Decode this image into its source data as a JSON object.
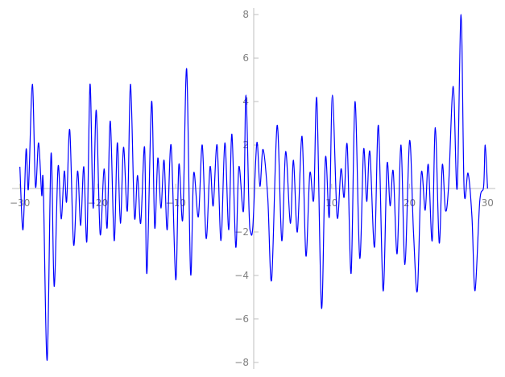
{
  "chart_data": {
    "type": "line",
    "xlim": [
      -31,
      31
    ],
    "ylim": [
      -8.3,
      8.3
    ],
    "xticks": [
      {
        "value": -30,
        "label": "−30"
      },
      {
        "value": -20,
        "label": "−20"
      },
      {
        "value": -10,
        "label": "−10"
      },
      10,
      20,
      30
    ],
    "yticks": [
      {
        "value": -8,
        "label": "−8"
      },
      {
        "value": -6,
        "label": "−6"
      },
      {
        "value": -4,
        "label": "−4"
      },
      {
        "value": -2,
        "label": "−2"
      },
      2,
      4,
      6,
      8
    ],
    "grid": false,
    "series": [
      {
        "color": "#0000ff",
        "x": [
          -30,
          -29.6,
          -29.2,
          -28.9,
          -28.4,
          -28.0,
          -27.6,
          -27.2,
          -27.0,
          -26.5,
          -26.0,
          -25.6,
          -25.1,
          -24.7,
          -24.3,
          -24.0,
          -23.6,
          -23.1,
          -22.6,
          -22.2,
          -21.8,
          -21.4,
          -21.0,
          -20.6,
          -20.2,
          -19.7,
          -19.2,
          -18.8,
          -18.4,
          -17.9,
          -17.5,
          -17.1,
          -16.7,
          -16.2,
          -15.8,
          -15.3,
          -14.9,
          -14.5,
          -14.0,
          -13.7,
          -13.1,
          -12.7,
          -12.3,
          -11.9,
          -11.5,
          -11.1,
          -10.6,
          -10.0,
          -9.6,
          -9.1,
          -8.6,
          -8.1,
          -7.7,
          -7.1,
          -6.6,
          -6.1,
          -5.6,
          -5.2,
          -4.7,
          -4.2,
          -3.7,
          -3.2,
          -2.8,
          -2.3,
          -1.9,
          -1.3,
          -1.0,
          -0.6,
          -0.4,
          -0.1,
          0.4,
          0.8,
          1.2,
          1.8,
          2.3,
          3.0,
          3.6,
          4.1,
          4.7,
          5.1,
          5.6,
          6.2,
          6.7,
          7.2,
          7.7,
          8.1,
          8.7,
          9.2,
          9.7,
          10.1,
          10.7,
          11.2,
          11.6,
          12.0,
          12.5,
          13.0,
          13.6,
          14.1,
          14.5,
          14.9,
          15.5,
          16.0,
          16.6,
          17.1,
          17.5,
          17.9,
          18.4,
          18.9,
          19.4,
          20.0,
          20.5,
          21.0,
          21.5,
          22.0,
          22.4,
          22.9,
          23.3,
          23.8,
          24.2,
          24.6,
          25.0,
          25.6,
          26.1,
          26.6,
          27.0,
          27.5,
          28.0,
          28.4,
          29.0,
          29.5,
          29.7,
          30
        ],
        "values": [
          1.0,
          -1.9,
          1.8,
          0,
          4.8,
          0.1,
          2.1,
          -0.3,
          0.2,
          -7.9,
          1.6,
          -4.5,
          1.0,
          -1.4,
          0.8,
          -0.6,
          2.7,
          -2.6,
          0.8,
          -1.7,
          1.0,
          -2.4,
          4.8,
          -0.9,
          3.6,
          -2.1,
          0.9,
          -1.8,
          3.1,
          -2.4,
          2.1,
          -1.6,
          1.9,
          -1.0,
          4.8,
          -1.3,
          0.6,
          -1.6,
          1.9,
          -3.9,
          4.0,
          -1.8,
          1.4,
          -0.9,
          1.3,
          -1.9,
          2.0,
          -4.2,
          1.1,
          -1.4,
          5.5,
          -3.9,
          0.7,
          -1.3,
          2.0,
          -2.3,
          1.0,
          -0.8,
          2.0,
          -2.4,
          2.1,
          -1.9,
          2.5,
          -2.7,
          1.0,
          -1.0,
          4.3,
          -1.0,
          -2.0,
          -1.7,
          2.1,
          0.1,
          1.8,
          -0.4,
          -4.2,
          2.9,
          -2.4,
          1.7,
          -1.6,
          1.3,
          -2.0,
          2.4,
          -3.1,
          0.7,
          -0.5,
          4.1,
          -5.5,
          1.4,
          -1.3,
          4.3,
          -1.3,
          0.9,
          -0.4,
          2.0,
          -3.9,
          4.0,
          -3.2,
          1.8,
          -0.6,
          1.7,
          -2.7,
          2.9,
          -4.7,
          1.1,
          -0.8,
          0.8,
          -3.0,
          2.0,
          -3.5,
          2.2,
          -2.0,
          -4.7,
          0.7,
          -1.0,
          1.1,
          -2.4,
          2.8,
          -2.5,
          1.1,
          -1.0,
          0.1,
          4.7,
          0,
          8.0,
          -0.1,
          0.7,
          -1.3,
          -4.7,
          -0.6,
          0.1,
          2.0,
          0
        ]
      }
    ]
  }
}
